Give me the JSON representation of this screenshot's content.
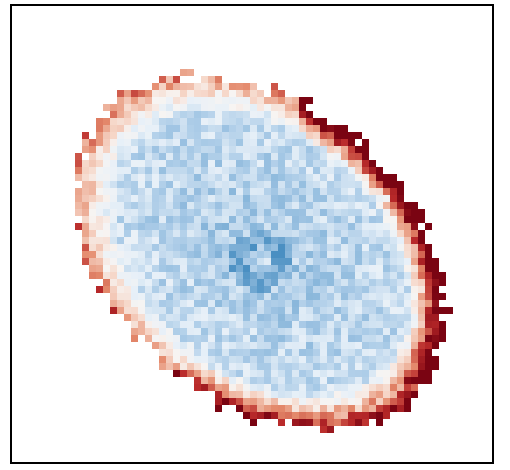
{
  "figure": {
    "kind": "pixelated map of a tilted disc",
    "colormap": {
      "negative_strong": "#4a8fc2",
      "negative_mid": "#a7c9e6",
      "negative_light": "#e7f0f8",
      "neutral": "#f7f4f2",
      "positive_light": "#f6d7c9",
      "positive_mid": "#e48a6c",
      "positive_strong": "#b92a2a",
      "positive_max": "#7a0412"
    },
    "grid_lines": false,
    "axes_visible": false
  }
}
